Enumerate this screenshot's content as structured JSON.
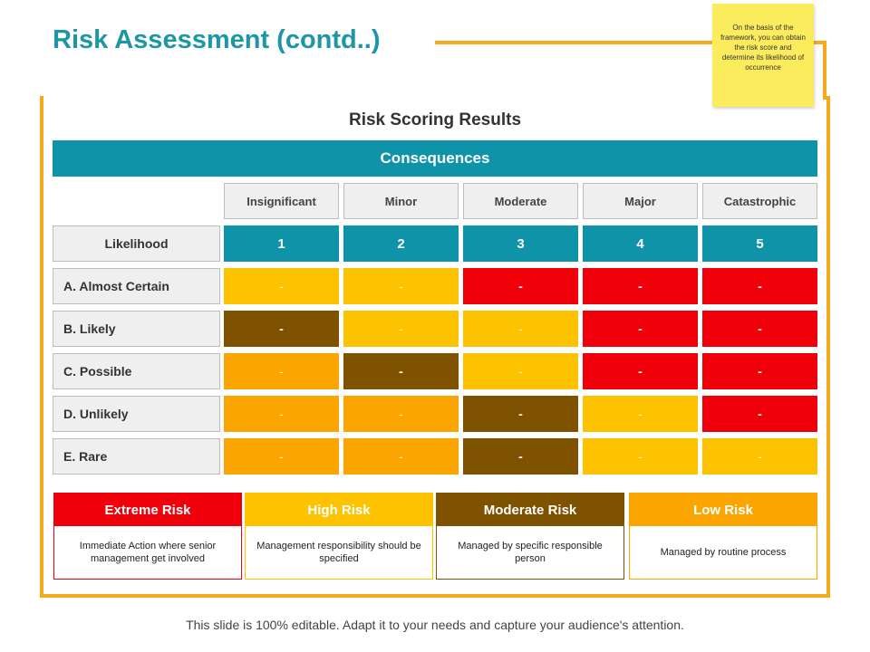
{
  "title": "Risk Assessment (contd..)",
  "sticky_note": "On the basis of the framework, you can obtain the risk score and determine its likelihood of occurrence",
  "section_title": "Risk Scoring Results",
  "consequences_label": "Consequences",
  "likelihood_label": "Likelihood",
  "columns": [
    {
      "name": "Insignificant",
      "score": "1"
    },
    {
      "name": "Minor",
      "score": "2"
    },
    {
      "name": "Moderate",
      "score": "3"
    },
    {
      "name": "Major",
      "score": "4"
    },
    {
      "name": "Catastrophic",
      "score": "5"
    }
  ],
  "rows": [
    {
      "label": "A. Almost Certain",
      "cells": [
        "-",
        "-",
        "-",
        "-",
        "-"
      ],
      "levels": [
        "high",
        "high",
        "extreme",
        "extreme",
        "extreme"
      ]
    },
    {
      "label": "B. Likely",
      "cells": [
        "-",
        "-",
        "-",
        "-",
        "-"
      ],
      "levels": [
        "moderate",
        "high",
        "high",
        "extreme",
        "extreme"
      ]
    },
    {
      "label": "C. Possible",
      "cells": [
        "-",
        "-",
        "-",
        "-",
        "-"
      ],
      "levels": [
        "low",
        "moderate",
        "high",
        "extreme",
        "extreme"
      ]
    },
    {
      "label": "D. Unlikely",
      "cells": [
        "-",
        "-",
        "-",
        "-",
        "-"
      ],
      "levels": [
        "low",
        "low",
        "moderate",
        "high",
        "extreme"
      ]
    },
    {
      "label": "E. Rare",
      "cells": [
        "-",
        "-",
        "-",
        "-",
        "-"
      ],
      "levels": [
        "low",
        "low",
        "moderate",
        "high",
        "high"
      ]
    }
  ],
  "colors": {
    "extreme": "#f0000a",
    "high": "#fdc300",
    "moderate": "#7f5200",
    "low": "#fba500",
    "teal": "#0e93a8",
    "accent_orange": "#f7a81b"
  },
  "legend": [
    {
      "key": "extreme",
      "title": "Extreme Risk",
      "description": "Immediate Action where senior management get involved"
    },
    {
      "key": "high",
      "title": "High Risk",
      "description": "Management responsibility should be specified"
    },
    {
      "key": "moderate",
      "title": "Moderate Risk",
      "description": "Managed by specific responsible person"
    },
    {
      "key": "low",
      "title": "Low Risk",
      "description": "Managed by routine process"
    }
  ],
  "footer": "This slide is 100% editable. Adapt it to your needs and capture your audience's attention."
}
